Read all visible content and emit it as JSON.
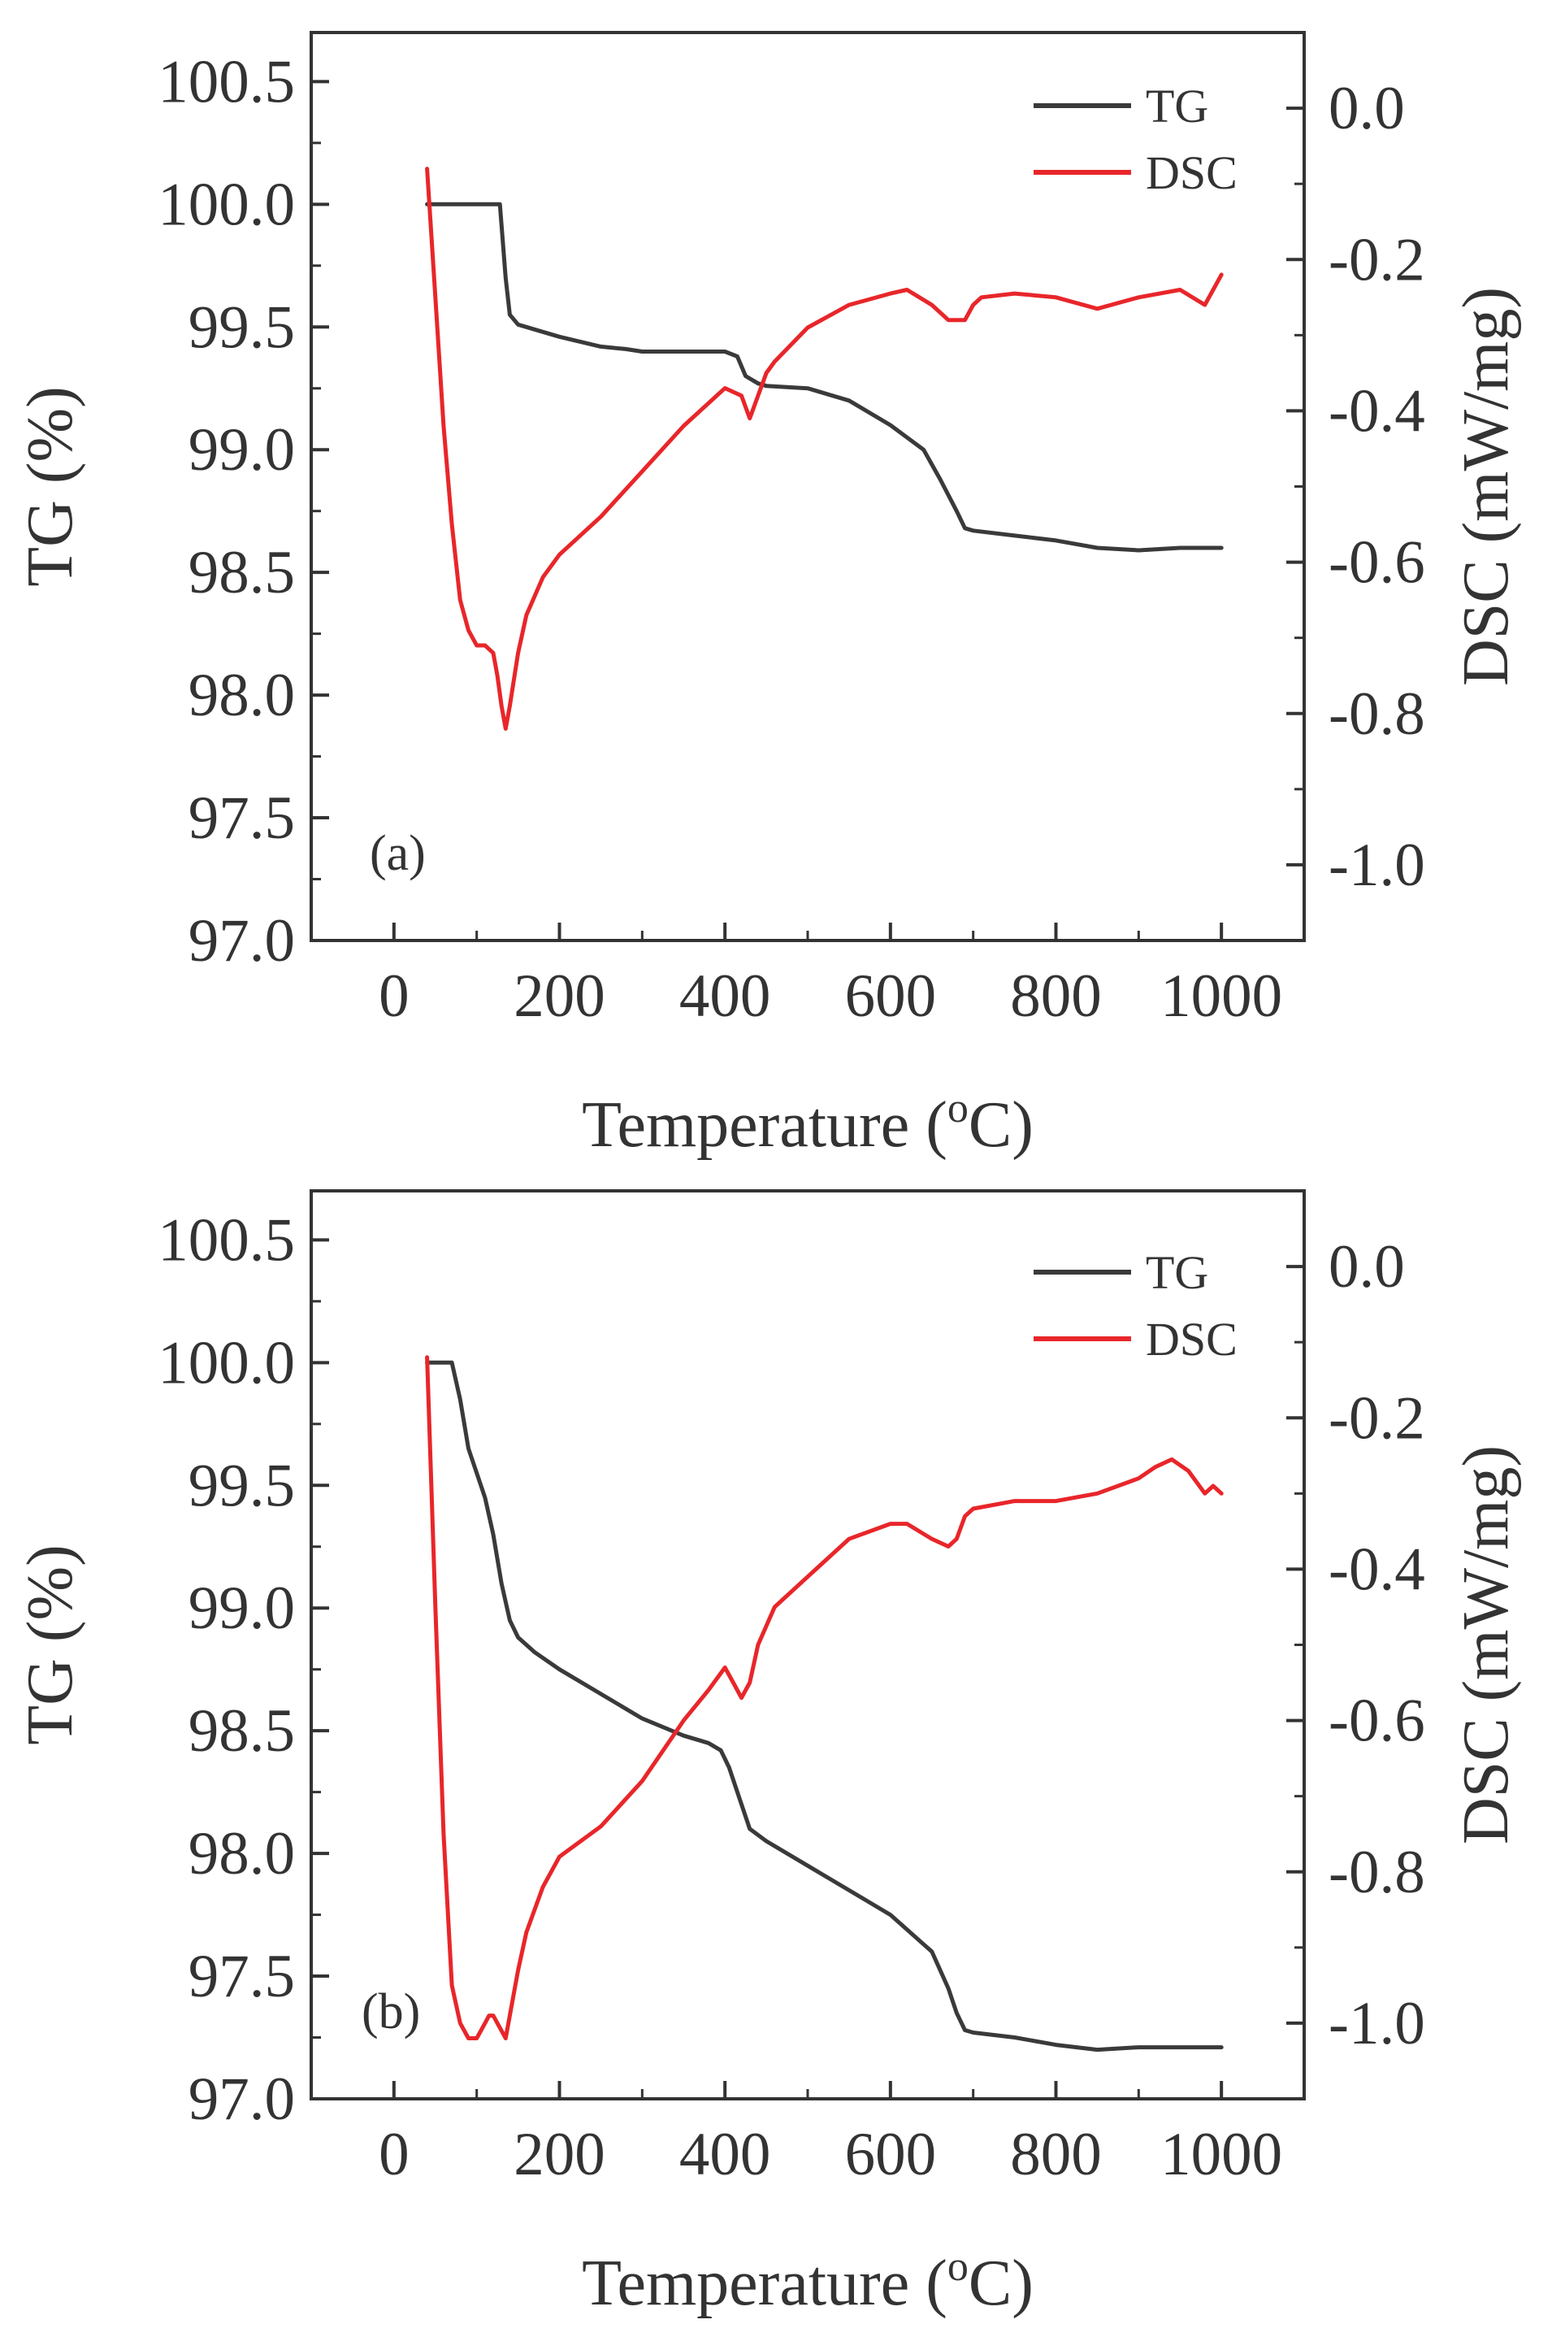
{
  "figure": {
    "background": "#ffffff"
  },
  "chart_data": [
    {
      "panel": "a",
      "type": "line",
      "panel_label": "(a)",
      "xlabel": "Temperature (",
      "xlabel_sup": "o",
      "xlabel_end": "C)",
      "ylabel_left": "TG (%)",
      "ylabel_right": "DSC (mW/mg)",
      "xlim": [
        -100,
        1100
      ],
      "ylim_left": [
        97.0,
        100.7
      ],
      "ylim_right": [
        -1.1,
        0.1
      ],
      "x_ticks": [
        0,
        200,
        400,
        600,
        800,
        1000
      ],
      "y_ticks_left": [
        "97.0",
        "97.5",
        "98.0",
        "98.5",
        "99.0",
        "99.5",
        "100.0",
        "100.5"
      ],
      "y_ticks_right": [
        "0.0",
        "-0.2",
        "-0.4",
        "-0.6",
        "-0.8",
        "-1.0"
      ],
      "legend": {
        "position": "top-right",
        "entries": [
          "TG",
          "DSC"
        ]
      },
      "series": [
        {
          "name": "TG",
          "axis": "left",
          "color": "#3a3a3a",
          "x": [
            40,
            60,
            80,
            100,
            120,
            128,
            135,
            140,
            150,
            160,
            180,
            200,
            250,
            280,
            300,
            350,
            400,
            415,
            425,
            440,
            450,
            500,
            550,
            600,
            640,
            660,
            680,
            690,
            700,
            750,
            800,
            850,
            900,
            950,
            1000
          ],
          "y": [
            100.0,
            100.0,
            100.0,
            100.0,
            100.0,
            100.0,
            99.7,
            99.55,
            99.51,
            99.5,
            99.48,
            99.46,
            99.42,
            99.41,
            99.4,
            99.4,
            99.4,
            99.38,
            99.3,
            99.27,
            99.26,
            99.25,
            99.2,
            99.1,
            99.0,
            98.88,
            98.75,
            98.68,
            98.67,
            98.65,
            98.63,
            98.6,
            98.59,
            98.6,
            98.6
          ]
        },
        {
          "name": "DSC",
          "axis": "right",
          "color": "#e8262a",
          "x": [
            40,
            50,
            60,
            70,
            80,
            90,
            100,
            110,
            120,
            125,
            130,
            135,
            140,
            150,
            160,
            180,
            200,
            250,
            300,
            350,
            400,
            420,
            430,
            440,
            450,
            460,
            500,
            550,
            600,
            620,
            650,
            670,
            690,
            700,
            710,
            750,
            800,
            850,
            900,
            950,
            980,
            1000
          ],
          "y": [
            -0.08,
            -0.25,
            -0.42,
            -0.55,
            -0.65,
            -0.69,
            -0.71,
            -0.71,
            -0.72,
            -0.75,
            -0.79,
            -0.82,
            -0.79,
            -0.72,
            -0.67,
            -0.62,
            -0.59,
            -0.54,
            -0.48,
            -0.42,
            -0.37,
            -0.38,
            -0.41,
            -0.38,
            -0.35,
            -0.335,
            -0.29,
            -0.26,
            -0.245,
            -0.24,
            -0.26,
            -0.28,
            -0.28,
            -0.26,
            -0.25,
            -0.245,
            -0.25,
            -0.265,
            -0.25,
            -0.24,
            -0.26,
            -0.22
          ]
        }
      ]
    },
    {
      "panel": "b",
      "type": "line",
      "panel_label": "(b)",
      "xlabel": "Temperature (",
      "xlabel_sup": "o",
      "xlabel_end": "C)",
      "ylabel_left": "TG (%)",
      "ylabel_right": "DSC (mW/mg)",
      "xlim": [
        -100,
        1100
      ],
      "ylim_left": [
        97.0,
        100.7
      ],
      "ylim_right": [
        -1.1,
        0.1
      ],
      "x_ticks": [
        0,
        200,
        400,
        600,
        800,
        1000
      ],
      "y_ticks_left": [
        "97.0",
        "97.5",
        "98.0",
        "98.5",
        "99.0",
        "99.5",
        "100.0",
        "100.5"
      ],
      "y_ticks_right": [
        "0.0",
        "-0.2",
        "-0.4",
        "-0.6",
        "-0.8",
        "-1.0"
      ],
      "legend": {
        "position": "top-right",
        "entries": [
          "TG",
          "DSC"
        ]
      },
      "series": [
        {
          "name": "TG",
          "axis": "left",
          "color": "#3a3a3a",
          "x": [
            40,
            50,
            60,
            70,
            80,
            90,
            100,
            110,
            120,
            130,
            140,
            150,
            170,
            200,
            250,
            300,
            350,
            380,
            395,
            405,
            420,
            430,
            450,
            500,
            550,
            600,
            650,
            670,
            680,
            690,
            700,
            750,
            800,
            850,
            900,
            950,
            1000
          ],
          "y": [
            100.0,
            100.0,
            100.0,
            100.0,
            99.85,
            99.65,
            99.55,
            99.45,
            99.3,
            99.1,
            98.95,
            98.88,
            98.82,
            98.75,
            98.65,
            98.55,
            98.48,
            98.45,
            98.42,
            98.35,
            98.2,
            98.1,
            98.05,
            97.95,
            97.85,
            97.75,
            97.6,
            97.45,
            97.35,
            97.28,
            97.27,
            97.25,
            97.22,
            97.2,
            97.21,
            97.21,
            97.21
          ]
        },
        {
          "name": "DSC",
          "axis": "right",
          "color": "#e8262a",
          "x": [
            40,
            50,
            60,
            70,
            80,
            90,
            100,
            110,
            115,
            120,
            125,
            130,
            135,
            140,
            150,
            160,
            180,
            200,
            250,
            300,
            350,
            380,
            400,
            410,
            420,
            430,
            440,
            460,
            500,
            550,
            600,
            620,
            650,
            670,
            680,
            690,
            700,
            750,
            800,
            850,
            900,
            920,
            940,
            960,
            980,
            990,
            1000
          ],
          "y": [
            -0.12,
            -0.45,
            -0.75,
            -0.95,
            -1.0,
            -1.02,
            -1.02,
            -1.0,
            -0.99,
            -0.99,
            -1.0,
            -1.01,
            -1.02,
            -0.99,
            -0.93,
            -0.88,
            -0.82,
            -0.78,
            -0.74,
            -0.68,
            -0.6,
            -0.56,
            -0.53,
            -0.55,
            -0.57,
            -0.55,
            -0.5,
            -0.45,
            -0.41,
            -0.36,
            -0.34,
            -0.34,
            -0.36,
            -0.37,
            -0.36,
            -0.33,
            -0.32,
            -0.31,
            -0.31,
            -0.3,
            -0.28,
            -0.265,
            -0.255,
            -0.27,
            -0.3,
            -0.29,
            -0.3
          ]
        }
      ]
    }
  ]
}
